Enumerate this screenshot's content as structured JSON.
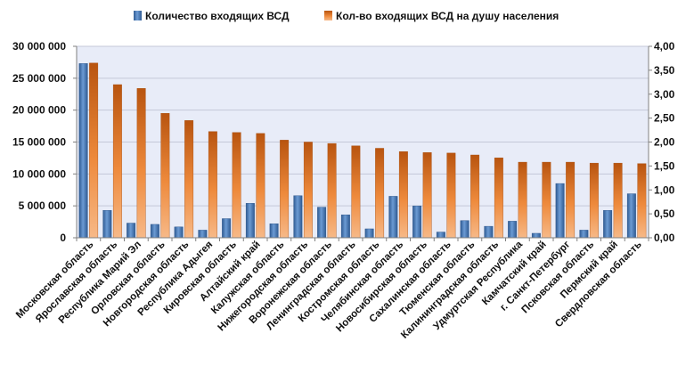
{
  "chart_data": {
    "type": "bar",
    "legend_position": "top",
    "grid": true,
    "categories": [
      "Московская область",
      "Ярославская область",
      "Республика Марий Эл",
      "Орловская область",
      "Новгородская область",
      "Республика Адыгея",
      "Кировская область",
      "Алтайский край",
      "Калужская область",
      "Нижегородская область",
      "Воронежская область",
      "Ленинградская область",
      "Костромская область",
      "Челябинская область",
      "Новосибирская область",
      "Сахалинская область",
      "Тюменская область",
      "Калининградская область",
      "Удмуртская Республика",
      "Камчатский край",
      "г. Санкт-Петербург",
      "Псковская область",
      "Пермский край",
      "Свердловская область"
    ],
    "series": [
      {
        "name": "Количество входящих ВСД",
        "axis": "left",
        "color": "#4f81bd",
        "values": [
          27300000,
          4300000,
          2300000,
          2100000,
          1700000,
          1200000,
          3000000,
          5400000,
          2200000,
          6600000,
          4800000,
          3600000,
          1400000,
          6500000,
          5000000,
          900000,
          2700000,
          1800000,
          2600000,
          700000,
          8500000,
          1200000,
          4300000,
          6900000
        ]
      },
      {
        "name": "Кол-во входящих ВСД на душу населения",
        "axis": "right",
        "color": "#e46c0a",
        "values": [
          3.65,
          3.2,
          3.12,
          2.6,
          2.45,
          2.22,
          2.2,
          2.18,
          2.04,
          2.0,
          1.97,
          1.92,
          1.87,
          1.8,
          1.78,
          1.77,
          1.73,
          1.67,
          1.58,
          1.58,
          1.58,
          1.56,
          1.56,
          1.55
        ]
      }
    ],
    "y_left": {
      "min": 0,
      "max": 30000000,
      "ticks": [
        0,
        5000000,
        10000000,
        15000000,
        20000000,
        25000000,
        30000000
      ],
      "tick_labels": [
        "0",
        "5 000 000",
        "10 000 000",
        "15 000 000",
        "20 000 000",
        "25 000 000",
        "30 000 000"
      ]
    },
    "y_right": {
      "min": 0,
      "max": 4,
      "ticks": [
        0,
        0.5,
        1,
        1.5,
        2,
        2.5,
        3,
        3.5,
        4
      ],
      "tick_labels": [
        "0,00",
        "0,50",
        "1,00",
        "1,50",
        "2,00",
        "2,50",
        "3,00",
        "3,50",
        "4,00"
      ]
    },
    "colors": {
      "plot_background": "#e8ecf8",
      "gridline": "#c4c8d8",
      "axis_line": "#808080"
    }
  }
}
